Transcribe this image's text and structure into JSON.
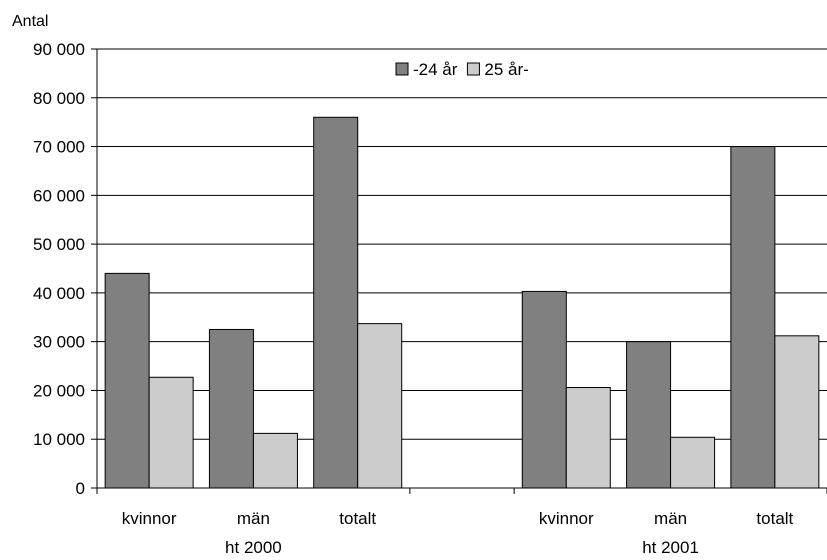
{
  "chart_data": {
    "type": "bar",
    "title": "",
    "ylabel": "Antal",
    "xlabel": "",
    "ylim": [
      0,
      90000
    ],
    "yticks": [
      0,
      10000,
      20000,
      30000,
      40000,
      50000,
      60000,
      70000,
      80000,
      90000
    ],
    "ytick_labels": [
      "0",
      "10 000",
      "20 000",
      "30 000",
      "40 000",
      "50 000",
      "60 000",
      "70 000",
      "80 000",
      "90 000"
    ],
    "grid": true,
    "legend": "top-center",
    "groups": [
      {
        "label": "ht 2000",
        "categories": [
          "kvinnor",
          "män",
          "totalt"
        ]
      },
      {
        "label": "ht 2001",
        "categories": [
          "kvinnor",
          "män",
          "totalt"
        ]
      }
    ],
    "categories": [
      "kvinnor",
      "män",
      "totalt",
      "kvinnor",
      "män",
      "totalt"
    ],
    "series": [
      {
        "name": "-24 år",
        "color": "#808080",
        "values": [
          44000,
          32500,
          76000,
          40300,
          30000,
          70000
        ]
      },
      {
        "name": "25 år-",
        "color": "#cccccc",
        "values": [
          22700,
          11200,
          33700,
          20600,
          10400,
          31200
        ]
      }
    ]
  }
}
